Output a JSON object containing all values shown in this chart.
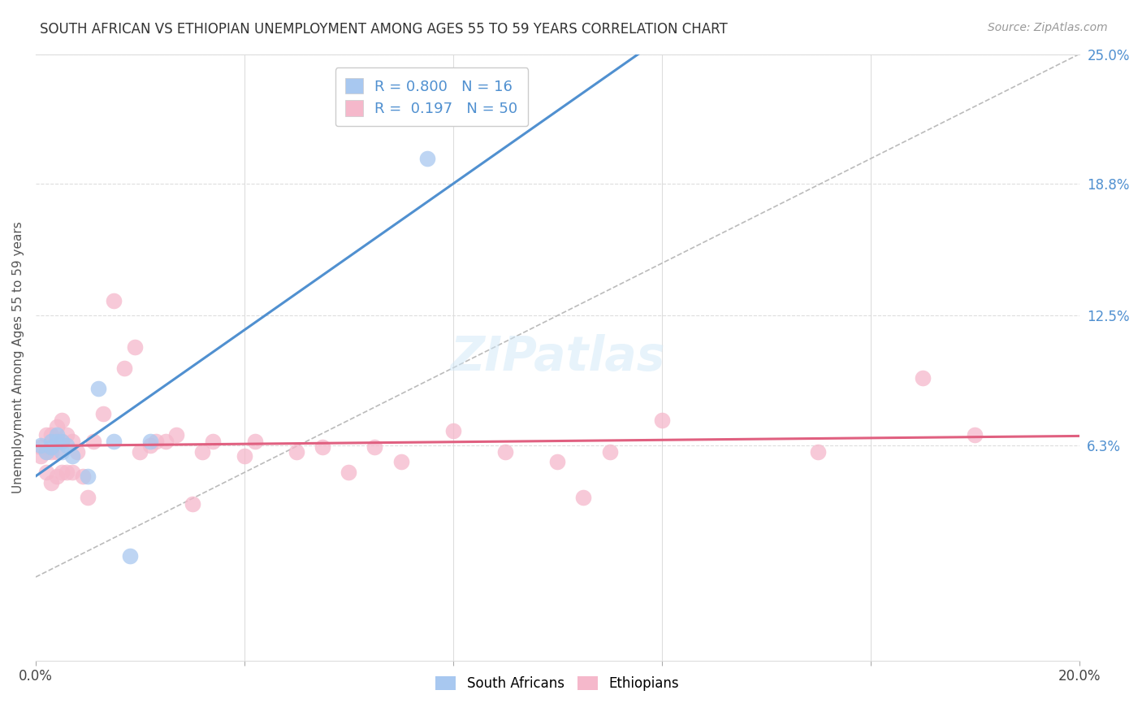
{
  "title": "SOUTH AFRICAN VS ETHIOPIAN UNEMPLOYMENT AMONG AGES 55 TO 59 YEARS CORRELATION CHART",
  "source": "Source: ZipAtlas.com",
  "ylabel_label": "Unemployment Among Ages 55 to 59 years",
  "sa_R": 0.8,
  "sa_N": 16,
  "eth_R": 0.197,
  "eth_N": 50,
  "sa_color": "#a8c8f0",
  "eth_color": "#f5b8cb",
  "sa_line_color": "#5090d0",
  "eth_line_color": "#e06080",
  "diag_color": "#bbbbbb",
  "background_color": "#ffffff",
  "grid_color": "#dddddd",
  "xlim": [
    0.0,
    0.2
  ],
  "ylim": [
    -0.04,
    0.25
  ],
  "ytick_vals": [
    0.063,
    0.125,
    0.188,
    0.25
  ],
  "ytick_labels": [
    "6.3%",
    "12.5%",
    "18.8%",
    "25.0%"
  ],
  "xtick_vals": [
    0.0,
    0.04,
    0.08,
    0.12,
    0.16,
    0.2
  ],
  "xtick_labels": [
    "0.0%",
    "",
    "",
    "",
    "",
    "20.0%"
  ],
  "sa_points_x": [
    0.001,
    0.002,
    0.003,
    0.003,
    0.004,
    0.004,
    0.005,
    0.005,
    0.006,
    0.007,
    0.01,
    0.012,
    0.015,
    0.018,
    0.022,
    0.075
  ],
  "sa_points_y": [
    0.063,
    0.06,
    0.065,
    0.062,
    0.065,
    0.068,
    0.06,
    0.065,
    0.063,
    0.058,
    0.048,
    0.09,
    0.065,
    0.01,
    0.065,
    0.2
  ],
  "eth_points_x": [
    0.001,
    0.001,
    0.002,
    0.002,
    0.002,
    0.003,
    0.003,
    0.003,
    0.004,
    0.004,
    0.004,
    0.005,
    0.005,
    0.005,
    0.006,
    0.006,
    0.007,
    0.007,
    0.008,
    0.009,
    0.01,
    0.011,
    0.013,
    0.015,
    0.017,
    0.019,
    0.02,
    0.022,
    0.023,
    0.025,
    0.027,
    0.03,
    0.032,
    0.034,
    0.04,
    0.042,
    0.05,
    0.055,
    0.06,
    0.065,
    0.07,
    0.08,
    0.09,
    0.1,
    0.105,
    0.11,
    0.12,
    0.15,
    0.17,
    0.18
  ],
  "eth_points_y": [
    0.058,
    0.062,
    0.05,
    0.06,
    0.068,
    0.045,
    0.06,
    0.068,
    0.048,
    0.06,
    0.072,
    0.05,
    0.065,
    0.075,
    0.05,
    0.068,
    0.05,
    0.065,
    0.06,
    0.048,
    0.038,
    0.065,
    0.078,
    0.132,
    0.1,
    0.11,
    0.06,
    0.063,
    0.065,
    0.065,
    0.068,
    0.035,
    0.06,
    0.065,
    0.058,
    0.065,
    0.06,
    0.062,
    0.05,
    0.062,
    0.055,
    0.07,
    0.06,
    0.055,
    0.038,
    0.06,
    0.075,
    0.06,
    0.095,
    0.068
  ]
}
